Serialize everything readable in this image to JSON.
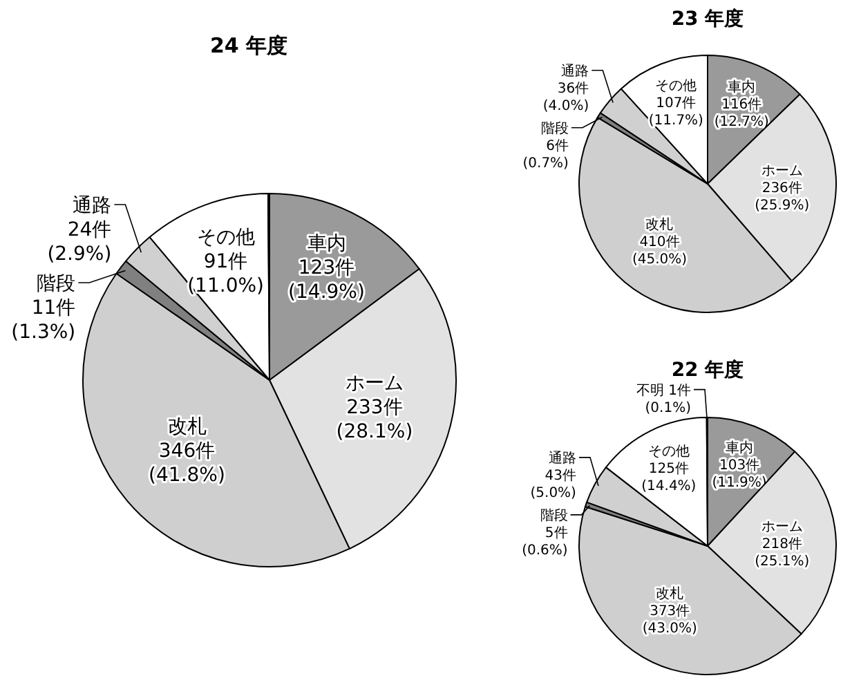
{
  "chart_data": [
    {
      "type": "pie",
      "title": "24 年度",
      "categories": [
        "車内",
        "ホーム",
        "改札",
        "階段",
        "通路",
        "その他",
        null
      ],
      "values": [
        123,
        233,
        346,
        11,
        24,
        91,
        1
      ],
      "colors": [
        "#9a9a9a",
        "#e2e2e2",
        "#cfcfcf",
        "#808080",
        "#d0d0d0",
        "#ffffff",
        "#5b7fb8"
      ],
      "value_labels": [
        "123件\n(14.9%)",
        "233件\n(28.1%)",
        "346件\n(41.8%)",
        "11件\n(1.3%)",
        "24件\n(2.9%)",
        "91件\n(11.0%)",
        null
      ]
    },
    {
      "type": "pie",
      "title": "23 年度",
      "categories": [
        "車内",
        "ホーム",
        "改札",
        "階段",
        "通路",
        "その他"
      ],
      "values": [
        116,
        236,
        410,
        6,
        36,
        107
      ],
      "colors": [
        "#9a9a9a",
        "#e2e2e2",
        "#cfcfcf",
        "#808080",
        "#d0d0d0",
        "#ffffff"
      ],
      "value_labels": [
        "116件\n(12.7%)",
        "236件\n(25.9%)",
        "410件\n(45.0%)",
        "6件\n(0.7%)",
        "36件\n(4.0%)",
        "107件\n(11.7%)"
      ]
    },
    {
      "type": "pie",
      "title": "22 年度",
      "categories": [
        "車内",
        "ホーム",
        "改札",
        "階段",
        "通路",
        "その他",
        "不明"
      ],
      "values": [
        103,
        218,
        373,
        5,
        43,
        125,
        1
      ],
      "colors": [
        "#9a9a9a",
        "#e2e2e2",
        "#cfcfcf",
        "#808080",
        "#d0d0d0",
        "#ffffff",
        "#ffffff"
      ],
      "value_labels": [
        "103件\n(11.9%)",
        "218件\n(25.1%)",
        "373件\n(43.0%)",
        "5件\n(0.6%)",
        "43件\n(5.0%)",
        "125件\n(14.4%)",
        "1件\n(0.1%)"
      ]
    }
  ]
}
